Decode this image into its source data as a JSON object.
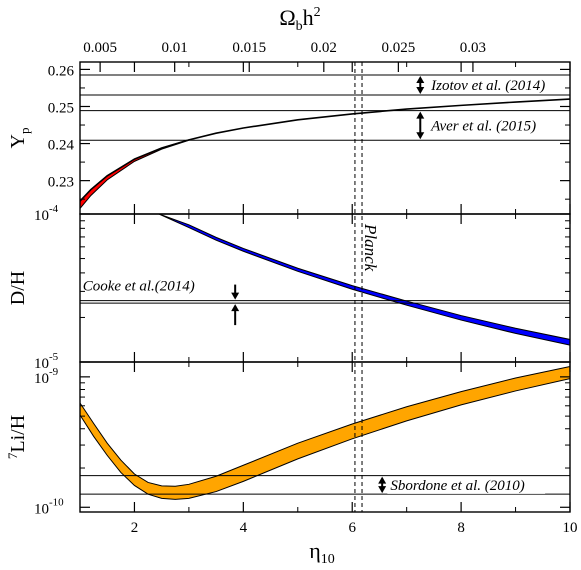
{
  "chart_data": [
    {
      "panel": "helium",
      "type": "area",
      "ylabel_main": "Y",
      "ylabel_sub": "p",
      "yticks": [
        "0.23",
        "0.24",
        "0.25",
        "0.26"
      ],
      "ylim": [
        0.221,
        0.262
      ],
      "fill_color": "#ff0000",
      "band_curve": {
        "x": [
          1.0,
          1.2,
          1.5,
          2.0,
          2.5,
          3.0,
          3.5,
          4.0,
          5.0,
          6.0,
          7.0,
          8.0,
          9.0,
          10.0
        ],
        "lower": [
          0.2225,
          0.226,
          0.2302,
          0.2352,
          0.2385,
          0.2409,
          0.2427,
          0.2441,
          0.2463,
          0.2479,
          0.2492,
          0.2502,
          0.2511,
          0.2519
        ],
        "upper": [
          0.2245,
          0.2276,
          0.2313,
          0.2358,
          0.2388,
          0.241,
          0.2428,
          0.2442,
          0.2464,
          0.248,
          0.2493,
          0.2503,
          0.2512,
          0.252
        ],
        "colored_until_x": 3.0
      },
      "observations": [
        {
          "label": "Izotov et al. (2014)",
          "y_low": 0.2531,
          "y_high": 0.2585,
          "arrow_x": 7.25,
          "label_x": 7.45
        },
        {
          "label": "Aver et al. (2015)",
          "y_low": 0.2409,
          "y_high": 0.2489,
          "arrow_x": 7.25,
          "label_x": 7.45
        }
      ]
    },
    {
      "panel": "deuterium",
      "type": "area",
      "ylabel": "D/H",
      "scale": "log",
      "yticks": [
        {
          "base": "10",
          "exp": "-5",
          "value": 1e-05
        },
        {
          "base": "10",
          "exp": "-4",
          "value": 0.0001
        }
      ],
      "ylim": [
        1e-05,
        0.0001
      ],
      "fill_color": "#0000ff",
      "band_curve": {
        "x": [
          2.45,
          3.0,
          3.5,
          4.0,
          5.0,
          6.0,
          7.0,
          8.0,
          9.0,
          10.0
        ],
        "lower": [
          0.0001,
          8.1e-05,
          6.65e-05,
          5.6e-05,
          4.1e-05,
          3.1e-05,
          2.42e-05,
          1.92e-05,
          1.56e-05,
          1.3e-05
        ],
        "upper": [
          0.0001,
          8.45e-05,
          6.95e-05,
          5.85e-05,
          4.3e-05,
          3.28e-05,
          2.58e-05,
          2.06e-05,
          1.69e-05,
          1.42e-05
        ]
      },
      "observations": [
        {
          "label": "Cooke et al.(2014)",
          "y_low": 2.5e-05,
          "y_high": 2.6e-05,
          "arrow_x": 3.85,
          "label_x": 1.05
        }
      ]
    },
    {
      "panel": "lithium",
      "type": "area",
      "ylabel_sup": "7",
      "ylabel_main": "Li/H",
      "scale": "log",
      "yticks": [
        {
          "base": "10",
          "exp": "-10",
          "value": 1e-10
        },
        {
          "base": "10",
          "exp": "-9",
          "value": 1e-09
        }
      ],
      "ylim": [
        9.2e-11,
        1.3e-09
      ],
      "fill_color": "#ffa500",
      "band_curve": {
        "x": [
          1.0,
          1.25,
          1.5,
          1.75,
          2.0,
          2.25,
          2.5,
          2.75,
          3.0,
          3.5,
          4.0,
          5.0,
          6.0,
          7.0,
          8.0,
          9.0,
          10.0
        ],
        "lower": [
          5.1e-10,
          3.5e-10,
          2.5e-10,
          1.85e-10,
          1.47e-10,
          1.26e-10,
          1.17e-10,
          1.15e-10,
          1.17e-10,
          1.32e-10,
          1.58e-10,
          2.35e-10,
          3.35e-10,
          4.6e-10,
          6.1e-10,
          7.8e-10,
          9.7e-10
        ],
        "upper": [
          6.3e-10,
          4.4e-10,
          3.1e-10,
          2.3e-10,
          1.8e-10,
          1.55e-10,
          1.46e-10,
          1.45e-10,
          1.5e-10,
          1.73e-10,
          2.1e-10,
          3.1e-10,
          4.35e-10,
          5.9e-10,
          7.7e-10,
          9.8e-10,
          1.2e-09
        ]
      },
      "observations": [
        {
          "label": "Sbordone et al. (2010)",
          "y_low": 1.26e-10,
          "y_high": 1.75e-10,
          "arrow_x": 6.55,
          "label_x": 6.7
        }
      ]
    }
  ],
  "x_axis": {
    "label_main": "η",
    "label_sub": "10",
    "xlim": [
      1,
      10
    ],
    "ticks": [
      "2",
      "4",
      "6",
      "8",
      "10"
    ]
  },
  "top_axis": {
    "label_main": "Ω",
    "label_sub": "b",
    "label_h": "h",
    "label_sup": "2",
    "ticks": [
      "0.005",
      "0.01",
      "0.015",
      "0.02",
      "0.025",
      "0.03"
    ]
  },
  "planck": {
    "label": "Planck",
    "x_lines": [
      6.05,
      6.18
    ]
  }
}
